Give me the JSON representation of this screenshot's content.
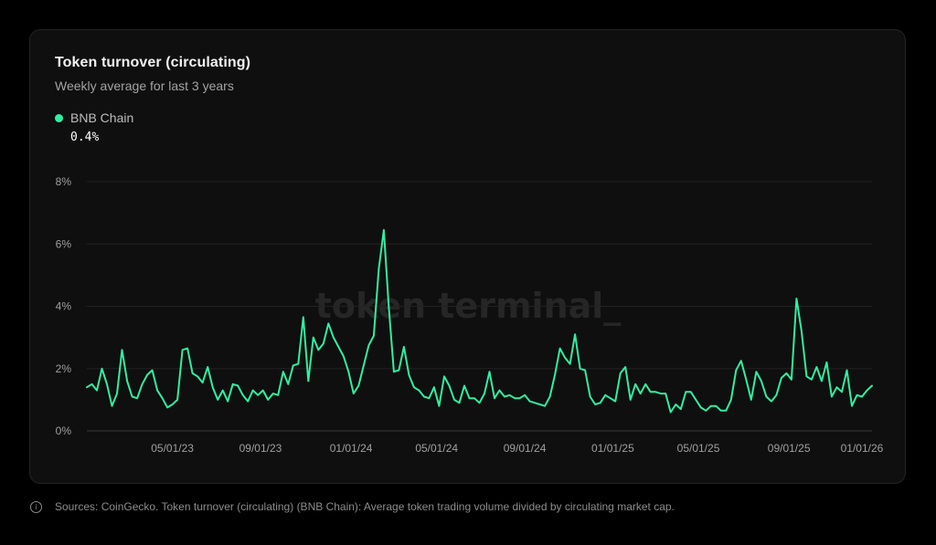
{
  "card": {
    "title": "Token turnover (circulating)",
    "subtitle": "Weekly average for last 3 years",
    "legend_label": "BNB Chain",
    "legend_color": "#2ef0a2",
    "current_value": "0.4%",
    "watermark": "token terminal_"
  },
  "footer": {
    "info_icon": "i",
    "text": "Sources: CoinGecko. Token turnover (circulating) (BNB Chain): Average token trading volume divided by circulating market cap."
  },
  "chart_data": {
    "type": "line",
    "ylim": [
      0,
      8
    ],
    "y_ticks": [
      0,
      2,
      4,
      6,
      8
    ],
    "y_tick_labels": [
      "0%",
      "2%",
      "4%",
      "6%",
      "8%"
    ],
    "x_tick_labels": [
      "05/01/23",
      "09/01/23",
      "01/01/24",
      "05/01/24",
      "09/01/24",
      "01/01/25",
      "05/01/25",
      "09/01/25",
      "01/01/26"
    ],
    "x_tick_positions": [
      17,
      34.5,
      52.5,
      69.5,
      87,
      104.5,
      121.5,
      139.5,
      154
    ],
    "grid": true,
    "series": [
      {
        "color": "#2ef0a2",
        "x": [
          0,
          1,
          2,
          3,
          4,
          5,
          6,
          7,
          8,
          9,
          10,
          11,
          12,
          13,
          14,
          15,
          16,
          17,
          18,
          19,
          20,
          21,
          22,
          23,
          24,
          25,
          26,
          27,
          28,
          29,
          30,
          31,
          32,
          33,
          34,
          35,
          36,
          37,
          38,
          39,
          40,
          41,
          42,
          43,
          44,
          45,
          46,
          47,
          48,
          49,
          50,
          51,
          52,
          53,
          54,
          55,
          56,
          57,
          58,
          59,
          60,
          61,
          62,
          63,
          64,
          65,
          66,
          67,
          68,
          69,
          70,
          71,
          72,
          73,
          74,
          75,
          76,
          77,
          78,
          79,
          80,
          81,
          82,
          83,
          84,
          85,
          86,
          87,
          88,
          89,
          90,
          91,
          92,
          93,
          94,
          95,
          96,
          97,
          98,
          99,
          100,
          101,
          102,
          103,
          104,
          105,
          106,
          107,
          108,
          109,
          110,
          111,
          112,
          113,
          114,
          115,
          116,
          117,
          118,
          119,
          120,
          121,
          122,
          123,
          124,
          125,
          126,
          127,
          128,
          129,
          130,
          131,
          132,
          133,
          134,
          135,
          136,
          137,
          138,
          139,
          140,
          141,
          142,
          143,
          144,
          145,
          146,
          147,
          148,
          149,
          150,
          151,
          152,
          153,
          154,
          155,
          156
        ],
        "values": [
          1.4,
          1.5,
          1.3,
          2.0,
          1.5,
          0.8,
          1.2,
          2.6,
          1.6,
          1.1,
          1.05,
          1.5,
          1.8,
          1.95,
          1.3,
          1.05,
          0.75,
          0.85,
          1.0,
          2.6,
          2.65,
          1.85,
          1.75,
          1.55,
          2.05,
          1.4,
          1.0,
          1.3,
          0.95,
          1.5,
          1.45,
          1.15,
          0.95,
          1.3,
          1.15,
          1.3,
          1.0,
          1.2,
          1.15,
          1.9,
          1.5,
          2.1,
          2.15,
          3.65,
          1.6,
          3.0,
          2.6,
          2.8,
          3.45,
          3.0,
          2.7,
          2.4,
          1.9,
          1.2,
          1.45,
          2.1,
          2.75,
          3.05,
          5.2,
          6.45,
          3.95,
          1.9,
          1.95,
          2.7,
          1.8,
          1.4,
          1.3,
          1.1,
          1.05,
          1.4,
          0.8,
          1.75,
          1.45,
          1.0,
          0.9,
          1.45,
          1.05,
          1.05,
          0.9,
          1.2,
          1.9,
          1.05,
          1.3,
          1.1,
          1.15,
          1.05,
          1.05,
          1.15,
          0.95,
          0.9,
          0.85,
          0.8,
          1.1,
          1.8,
          2.65,
          2.35,
          2.15,
          3.1,
          2.0,
          1.95,
          1.1,
          0.85,
          0.9,
          1.15,
          1.05,
          0.95,
          1.85,
          2.05,
          1.0,
          1.5,
          1.2,
          1.5,
          1.25,
          1.25,
          1.2,
          1.2,
          0.6,
          0.85,
          0.7,
          1.25,
          1.25,
          1.0,
          0.75,
          0.65,
          0.8,
          0.8,
          0.65,
          0.65,
          1.0,
          1.95,
          2.25,
          1.65,
          1.0,
          1.9,
          1.6,
          1.1,
          0.95,
          1.15,
          1.7,
          1.85,
          1.65,
          4.25,
          3.2,
          1.75,
          1.65,
          2.05,
          1.6,
          2.2,
          1.1,
          1.4,
          1.25,
          1.95,
          0.8,
          1.15,
          1.1,
          1.3,
          1.45
        ]
      }
    ]
  }
}
